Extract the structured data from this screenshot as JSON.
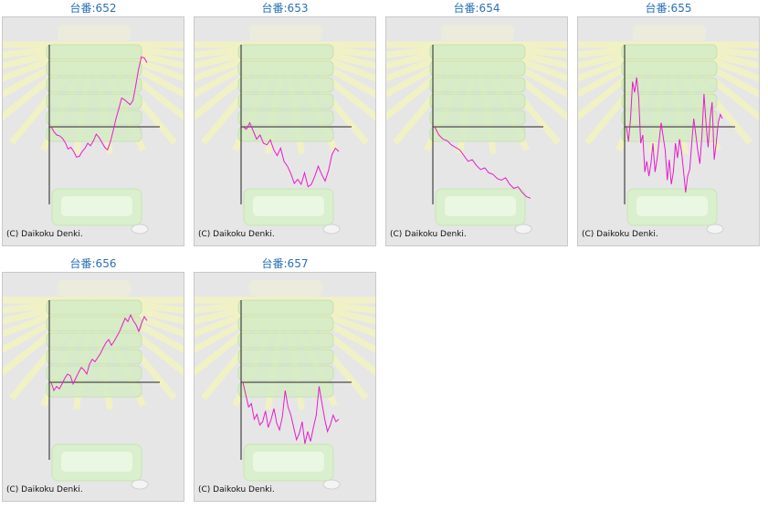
{
  "colors": {
    "title": "#2a6fb8",
    "line": "#e81ccc",
    "axis": "#222222",
    "panel_bg": "#e6e6e6"
  },
  "copyright": "(C) Daikoku Denki.",
  "chart_data": [
    {
      "type": "line",
      "title": "台番:652",
      "y": [
        0.0,
        -6,
        -10,
        -11,
        -14,
        -19,
        -27,
        -25,
        -30,
        -37,
        -36,
        -30,
        -26,
        -20,
        -23,
        -17,
        -9,
        -13,
        -19,
        -25,
        -28,
        -18,
        -5,
        10,
        22,
        35,
        33,
        30,
        27,
        32,
        50,
        70,
        85,
        84,
        78
      ]
    },
    {
      "type": "line",
      "title": "台番:653",
      "y": [
        0.0,
        -3,
        5,
        -5,
        -15,
        -10,
        -20,
        -22,
        -16,
        -28,
        -35,
        -26,
        -42,
        -48,
        -57,
        -69,
        -64,
        -70,
        -56,
        -73,
        -70,
        -60,
        -48,
        -58,
        -66,
        -53,
        -34,
        -26,
        -30
      ]
    },
    {
      "type": "line",
      "title": "台番:654",
      "y": [
        0.0,
        -10,
        -15,
        -17,
        -22,
        -25,
        -28,
        -35,
        -42,
        -40,
        -47,
        -52,
        -50,
        -56,
        -58,
        -63,
        -65,
        -62,
        -70,
        -75,
        -73,
        -80,
        -85,
        -87
      ]
    },
    {
      "type": "line",
      "title": "台番:655",
      "y": [
        0.0,
        -18,
        10,
        55,
        42,
        60,
        35,
        -20,
        -10,
        -55,
        -42,
        -60,
        -45,
        -20,
        -55,
        -40,
        -18,
        5,
        -12,
        -28,
        -65,
        -40,
        -70,
        -55,
        -20,
        -38,
        -15,
        -30,
        -55,
        -80,
        -60,
        -52,
        -20,
        10,
        -10,
        -30,
        -45,
        -10,
        40,
        5,
        -25,
        10,
        30,
        -40,
        -20,
        5,
        15,
        10
      ]
    },
    {
      "type": "line",
      "title": "台番:656",
      "y": [
        0.0,
        -10,
        -5,
        -8,
        -2,
        5,
        10,
        8,
        -2,
        5,
        12,
        18,
        15,
        10,
        22,
        28,
        25,
        30,
        35,
        42,
        48,
        52,
        45,
        50,
        56,
        62,
        70,
        78,
        74,
        82,
        75,
        70,
        62,
        72,
        80,
        75
      ]
    },
    {
      "type": "line",
      "title": "台番:657",
      "y": [
        0.0,
        -15,
        -30,
        -26,
        -45,
        -39,
        -52,
        -48,
        -35,
        -55,
        -45,
        -32,
        -50,
        -58,
        -42,
        -10,
        -30,
        -40,
        -55,
        -70,
        -62,
        -48,
        -75,
        -60,
        -72,
        -55,
        -40,
        -5,
        -25,
        -45,
        -60,
        -52,
        -40,
        -48,
        -45
      ]
    }
  ]
}
